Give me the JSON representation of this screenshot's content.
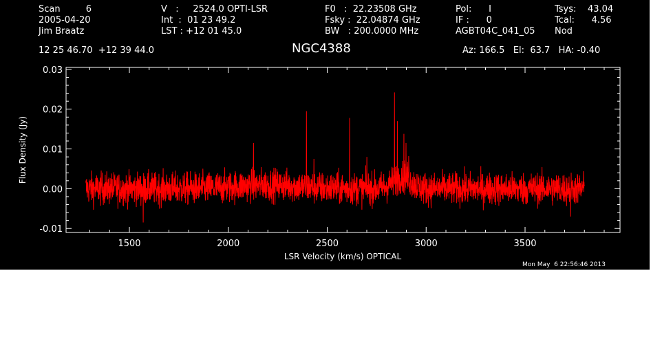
{
  "header": {
    "col1": {
      "line1": "Scan         6",
      "line2": "2005-04-20",
      "line3": "Jim Braatz"
    },
    "col2": {
      "line1": "V   :     2524.0 OPTI-LSR",
      "line2": "Int  :  01 23 49.2",
      "line3": "LST : +12 01 45.0"
    },
    "col3": {
      "line1": "F0   :  22.23508 GHz",
      "line2": "Fsky :  22.04874 GHz",
      "line3": "BW   : 200.0000 MHz"
    },
    "col4": {
      "line1": "Pol:      I",
      "line2": "IF :      0",
      "line3": "AGBT04C_041_05"
    },
    "col5": {
      "line1": "Tsys:    43.04",
      "line2": "Tcal:      4.56",
      "line3": "Nod"
    },
    "coords": "12 25 46.70  +12 39 44.0",
    "source": "NGC4388",
    "pointing": "Az: 166.5   El:  63.7   HA: -0.40",
    "timestamp": "Mon May  6 22:56:46 2013"
  },
  "colors": {
    "background": "#000000",
    "axes": "#ffffff",
    "trace": "#ff0000"
  },
  "chart_data": {
    "type": "line",
    "xlabel": "LSR Velocity (km/s) OPTICAL",
    "ylabel": "Flux Density (Jy)",
    "xlim": [
      1180,
      3980
    ],
    "ylim": [
      -0.011,
      0.0305
    ],
    "xticks": [
      1500,
      2000,
      2500,
      3000,
      3500
    ],
    "xtick_labels": [
      "1500",
      "2000",
      "2500",
      "3000",
      "3500"
    ],
    "yticks": [
      -0.01,
      0.0,
      0.01,
      0.02,
      0.03
    ],
    "ytick_labels": [
      "-0.01",
      "0.00",
      "0.01",
      "0.02",
      "0.03"
    ],
    "grid": false,
    "series": [
      {
        "x_range": [
          1280,
          3800
        ],
        "baseline_rms_jy": 0.002,
        "broad_bumps": [
          {
            "x": 2200,
            "height": 0.001,
            "width": 150
          },
          {
            "x": 2880,
            "height": 0.003,
            "width": 45
          }
        ],
        "spikes": [
          {
            "x": 2127,
            "y": 0.0115
          },
          {
            "x": 2395,
            "y": 0.0195
          },
          {
            "x": 2433,
            "y": 0.0075
          },
          {
            "x": 2613,
            "y": 0.0178
          },
          {
            "x": 2700,
            "y": 0.008
          },
          {
            "x": 2840,
            "y": 0.0242
          },
          {
            "x": 2855,
            "y": 0.017
          },
          {
            "x": 2888,
            "y": 0.0138
          },
          {
            "x": 2898,
            "y": 0.0115
          },
          {
            "x": 2912,
            "y": 0.0082
          }
        ],
        "dips": [
          {
            "x": 1570,
            "y": -0.0085
          },
          {
            "x": 3730,
            "y": -0.007
          }
        ]
      }
    ]
  }
}
